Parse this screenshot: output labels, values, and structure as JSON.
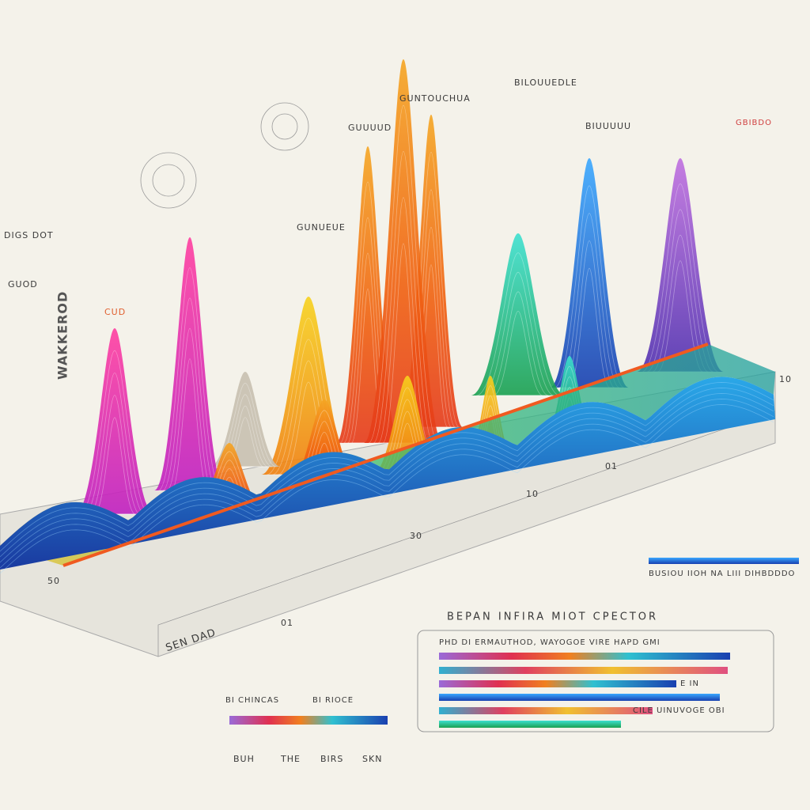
{
  "header": {
    "title": "BEPAN INFIRA MIOT CPECTOR"
  },
  "legend": {
    "title": "PHD DI ERMAUTHOD, WAYOGOE VIRE HAPD GMI",
    "note": "CILE UINUVOGE OBI",
    "side": "E IN"
  },
  "left_labels": [
    "DIGS DOT",
    "WAKKEROD",
    "GUOD",
    "CUD"
  ],
  "top_labels": [
    "GUNTOUCHUA",
    "BILOUUEDLE",
    "GUUUUD",
    "BIUUUUU",
    "GUNUEUE"
  ],
  "axis_labels": [
    "SEN DAD",
    "10",
    "30",
    "01",
    "50",
    "01",
    "10"
  ],
  "bottom": {
    "left": "BI CHINCAS",
    "right": "BI RIOCE",
    "keys": [
      "BUH",
      "THE",
      "BIRS",
      "SKN"
    ]
  },
  "right_labels": [
    "BUSIOU IIOH NA LIII DIHBDDDO",
    "GBIBDO"
  ]
}
